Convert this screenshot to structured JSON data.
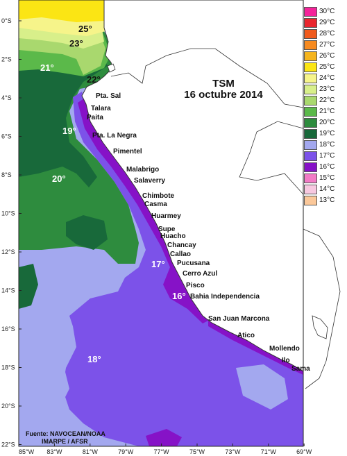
{
  "title": {
    "line1": "TSM",
    "line2": "16 octubre 2014"
  },
  "legend": [
    {
      "label": "30°C",
      "color": "#f4239a"
    },
    {
      "label": "29°C",
      "color": "#e9262e"
    },
    {
      "label": "28°C",
      "color": "#f05a1c"
    },
    {
      "label": "27°C",
      "color": "#f68a1f"
    },
    {
      "label": "26°C",
      "color": "#f5b41d"
    },
    {
      "label": "25°C",
      "color": "#fbe514"
    },
    {
      "label": "24°C",
      "color": "#f6f48a"
    },
    {
      "label": "23°C",
      "color": "#d8ef8a"
    },
    {
      "label": "22°C",
      "color": "#a9d86e"
    },
    {
      "label": "21°C",
      "color": "#5bb94a"
    },
    {
      "label": "20°C",
      "color": "#2e8c3e"
    },
    {
      "label": "19°C",
      "color": "#18693a"
    },
    {
      "label": "18°C",
      "color": "#a3a8ef"
    },
    {
      "label": "17°C",
      "color": "#7c52e9"
    },
    {
      "label": "16°C",
      "color": "#8612c7"
    },
    {
      "label": "15°C",
      "color": "#f27bc6"
    },
    {
      "label": "14°C",
      "color": "#f7c8e0"
    },
    {
      "label": "13°C",
      "color": "#fbc89a"
    }
  ],
  "lat_ticks": [
    "0°S",
    "2°S",
    "4°S",
    "6°S",
    "8°S",
    "10°S",
    "12°S",
    "14°S",
    "16°S",
    "18°S",
    "20°S",
    "22°S"
  ],
  "lon_ticks": [
    "85°W",
    "83°W",
    "81°W",
    "79°W",
    "77°W",
    "75°W",
    "73°W",
    "71°W",
    "69°W"
  ],
  "isotherms": [
    "25°",
    "23°",
    "21°",
    "22°",
    "19°",
    "20°",
    "17°",
    "16°",
    "18°"
  ],
  "places": [
    "Pta. Sal",
    "Talara",
    "Paita",
    "Pta. La Negra",
    "Pimentel",
    "Malabrigo",
    "Salaverry",
    "Chimbote",
    "Casma",
    "Huarmey",
    "Supe",
    "Huacho",
    "Chancay",
    "Callao",
    "Pucusana",
    "Cerro Azul",
    "Pisco",
    "Bahia Independencia",
    "San Juan Marcona",
    "Atico",
    "Mollendo",
    "Ilo",
    "Sama"
  ],
  "source": {
    "line1": "Fuente: NAVOCEAN/NOAA",
    "line2": "IMARPE / AFSR"
  },
  "colors": {
    "land": "#ffffff",
    "sea18": "#a3a8ef",
    "sea17": "#7c52e9",
    "sea16": "#8612c7",
    "sea19": "#18693a",
    "sea20": "#2e8c3e",
    "sea21": "#5bb94a",
    "sea22": "#a9d86e",
    "sea23": "#d8ef8a",
    "sea24": "#f6f48a",
    "sea25": "#fbe514"
  }
}
